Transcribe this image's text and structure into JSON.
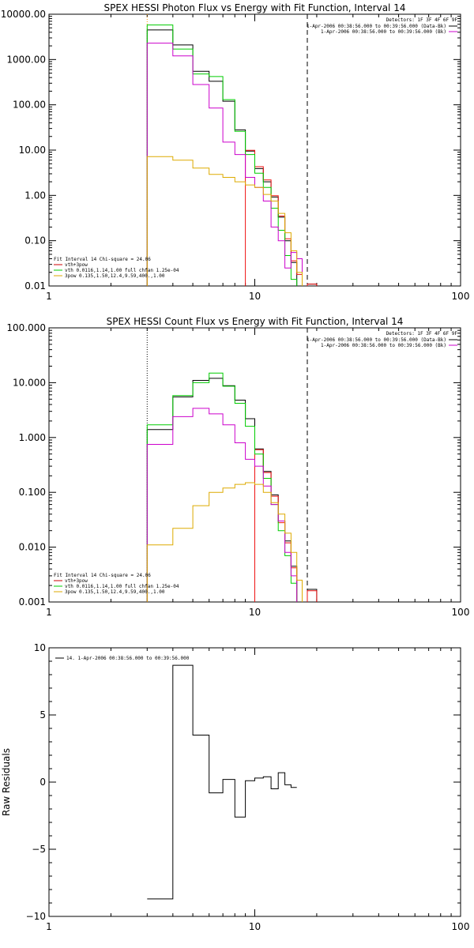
{
  "chart_data": [
    {
      "type": "line",
      "title": "SPEX HESSI Photon Flux vs Energy with Fit Function, Interval 14",
      "xlabel": "",
      "ylabel": "",
      "xscale": "log",
      "yscale": "log",
      "xlim": [
        1,
        100
      ],
      "ylim": [
        0.01,
        10000
      ],
      "xticks": [
        {
          "v": 1,
          "label": "1"
        },
        {
          "v": 10,
          "label": "10"
        },
        {
          "v": 100,
          "label": "100"
        }
      ],
      "yticks": [
        {
          "v": 10000,
          "label": "10000.00"
        },
        {
          "v": 1000,
          "label": "1000.00"
        },
        {
          "v": 100,
          "label": "100.00"
        },
        {
          "v": 10,
          "label": "10.00"
        },
        {
          "v": 1,
          "label": "1.00"
        },
        {
          "v": 0.1,
          "label": "0.10"
        },
        {
          "v": 0.01,
          "label": "0.01"
        }
      ],
      "vlines": [
        {
          "x": 3.0,
          "style": "dotted",
          "color": "#ff9900"
        },
        {
          "x": 18.0,
          "style": "dashed",
          "color": "#000000"
        }
      ],
      "legend_top_right": {
        "header": "Detectors: 1F 3F 4F 6F 9F",
        "entries": [
          {
            "label": "1-Apr-2006 00:38:56.000 to 00:39:56.000 (Data-Bk)",
            "color": "#000000"
          },
          {
            "label": "1-Apr-2006 00:38:56.000 to 00:39:56.000 (Bk)",
            "color": "#cc00cc"
          }
        ]
      },
      "legend_bottom_left": {
        "header": "Fit Interval 14   Chi-square = 24.06",
        "entries": [
          {
            "label": "vth+3pow",
            "color": "#cc0000"
          },
          {
            "label": "vth 0.0116,1.14,1.00  full chfan 1.25e-04",
            "color": "#00cc00"
          },
          {
            "label": "3pow 0.135,1.50,12.4,9.59,400.,1.00",
            "color": "#ddaa00"
          }
        ]
      },
      "bin_edges": [
        3,
        4,
        5,
        6,
        7,
        8,
        9,
        10,
        11,
        12,
        13,
        14,
        15,
        16,
        17,
        18,
        20
      ],
      "series": [
        {
          "name": "",
          "color": "#000000",
          "values": [
            4500,
            2100,
            550,
            330,
            120,
            28,
            9.5,
            3.9,
            2.0,
            0.92,
            0.33,
            0.1,
            0.033,
            null,
            null,
            0.011
          ]
        },
        {
          "name": "",
          "color": "#ee1111",
          "values": [
            null,
            null,
            null,
            null,
            null,
            null,
            9.9,
            4.3,
            2.2,
            0.98,
            0.35,
            0.11,
            0.036,
            0.018,
            null,
            0.011
          ]
        },
        {
          "name": "",
          "color": "#00cc00",
          "values": [
            5800,
            1700,
            480,
            420,
            130,
            26,
            8.0,
            3.1,
            1.5,
            0.52,
            0.17,
            0.047,
            0.014,
            null,
            null,
            null
          ]
        },
        {
          "name": "",
          "color": "#cc00cc",
          "values": [
            2300,
            1200,
            280,
            85,
            15,
            8.0,
            2.5,
            1.5,
            0.75,
            0.2,
            0.1,
            0.025,
            0.055,
            0.04,
            null,
            null
          ]
        },
        {
          "name": "",
          "color": "#ddaa00",
          "values": [
            7.2,
            6.0,
            4.0,
            2.9,
            2.5,
            2.0,
            1.7,
            1.5,
            1.05,
            0.75,
            0.4,
            0.15,
            0.06,
            0.02,
            null,
            null
          ]
        }
      ]
    },
    {
      "type": "line",
      "title": "SPEX HESSI Count Flux vs Energy with Fit Function, Interval 14",
      "xlabel": "",
      "ylabel": "",
      "xscale": "log",
      "yscale": "log",
      "xlim": [
        1,
        100
      ],
      "ylim": [
        0.001,
        100
      ],
      "xticks": [
        {
          "v": 1,
          "label": "1"
        },
        {
          "v": 10,
          "label": "10"
        },
        {
          "v": 100,
          "label": "100"
        }
      ],
      "yticks": [
        {
          "v": 100,
          "label": "100.000"
        },
        {
          "v": 10,
          "label": "10.000"
        },
        {
          "v": 1,
          "label": "1.000"
        },
        {
          "v": 0.1,
          "label": "0.100"
        },
        {
          "v": 0.01,
          "label": "0.010"
        },
        {
          "v": 0.001,
          "label": "0.001"
        }
      ],
      "vlines": [
        {
          "x": 3.0,
          "style": "dotted",
          "color": "#000000"
        },
        {
          "x": 18.0,
          "style": "dashed",
          "color": "#000000"
        }
      ],
      "legend_top_right": {
        "header": "Detectors: 1F 3F 4F 6F 9F",
        "entries": [
          {
            "label": "1-Apr-2006 00:38:56.000 to 00:39:56.000 (Data-Bk)",
            "color": "#000000"
          },
          {
            "label": "1-Apr-2006 00:38:56.000 to 00:39:56.000 (Bk)",
            "color": "#cc00cc"
          }
        ]
      },
      "legend_bottom_left": {
        "header": "Fit Interval 14   Chi-square = 24.06",
        "entries": [
          {
            "label": "vth+3pow",
            "color": "#cc0000"
          },
          {
            "label": "vth 0.0116,1.14,1.00  full chfan 1.25e-04",
            "color": "#00cc00"
          },
          {
            "label": "3pow 0.135,1.50,12.4,9.59,400.,1.00",
            "color": "#ddaa00"
          }
        ]
      },
      "bin_edges": [
        3,
        4,
        5,
        6,
        7,
        8,
        9,
        10,
        11,
        12,
        13,
        14,
        15,
        16,
        17,
        18,
        20
      ],
      "series": [
        {
          "name": "",
          "color": "#000000",
          "values": [
            1.4,
            5.5,
            11,
            12,
            8.8,
            4.8,
            2.2,
            0.62,
            0.24,
            0.09,
            0.03,
            0.013,
            0.0045,
            null,
            null,
            0.0017
          ]
        },
        {
          "name": "",
          "color": "#ee1111",
          "values": [
            null,
            null,
            null,
            null,
            null,
            null,
            null,
            0.6,
            0.23,
            0.085,
            0.028,
            0.012,
            0.0042,
            null,
            null,
            0.0016
          ]
        },
        {
          "name": "",
          "color": "#00cc00",
          "values": [
            1.7,
            5.8,
            10,
            15,
            8.6,
            4.2,
            1.6,
            0.5,
            0.18,
            0.06,
            0.02,
            0.007,
            0.0022,
            null,
            null,
            null
          ]
        },
        {
          "name": "",
          "color": "#cc00cc",
          "values": [
            0.75,
            2.4,
            3.4,
            2.7,
            1.7,
            0.8,
            0.4,
            0.3,
            0.13,
            0.06,
            0.03,
            0.008,
            0.003,
            null,
            null,
            null
          ]
        },
        {
          "name": "",
          "color": "#ddaa00",
          "values": [
            0.011,
            0.022,
            0.057,
            0.1,
            0.12,
            0.14,
            0.15,
            0.14,
            0.1,
            0.065,
            0.04,
            0.018,
            0.008,
            0.0025,
            null,
            null
          ]
        }
      ]
    },
    {
      "type": "line",
      "title": "",
      "xlabel": "",
      "ylabel": "Raw Residuals",
      "xscale": "log",
      "yscale": "linear",
      "xlim": [
        1,
        100
      ],
      "ylim": [
        -10,
        10
      ],
      "xticks": [
        {
          "v": 1,
          "label": "1"
        },
        {
          "v": 10,
          "label": "10"
        },
        {
          "v": 100,
          "label": "100"
        }
      ],
      "yticks": [
        {
          "v": 10,
          "label": "10"
        },
        {
          "v": 5,
          "label": "5"
        },
        {
          "v": 0,
          "label": "0"
        },
        {
          "v": -5,
          "label": "−5"
        },
        {
          "v": -10,
          "label": "−10"
        }
      ],
      "legend_top_left": {
        "entries": [
          {
            "label": "14.  1-Apr-2006 00:38:56.000 to 00:39:56.000",
            "color": "#000000"
          }
        ]
      },
      "bin_edges": [
        3,
        4,
        5,
        6,
        7,
        8,
        9,
        10,
        11,
        12,
        13,
        14,
        15,
        16,
        17,
        18
      ],
      "series": [
        {
          "name": "",
          "color": "#000000",
          "values": [
            -8.7,
            8.7,
            3.5,
            -0.8,
            0.2,
            -2.6,
            0.1,
            0.3,
            0.4,
            -0.5,
            0.7,
            -0.2,
            -0.4,
            null,
            null
          ]
        }
      ]
    }
  ]
}
